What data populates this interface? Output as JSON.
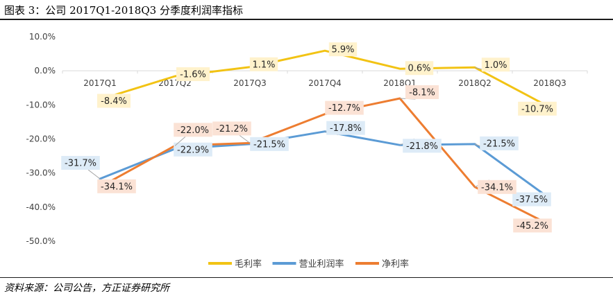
{
  "figure": {
    "title": "图表 3：公司 2017Q1-2018Q3 分季度利润率指标",
    "source": "资料来源：公司公告，方正证券研究所"
  },
  "chart_data": {
    "type": "line",
    "categories": [
      "2017Q1",
      "2017Q2",
      "2017Q3",
      "2017Q4",
      "2018Q1",
      "2018Q2",
      "2018Q3"
    ],
    "ylim": [
      -50,
      10
    ],
    "yticks": [
      10,
      0,
      -10,
      -20,
      -30,
      -40,
      -50
    ],
    "ytick_labels": [
      "10.0%",
      "0.0%",
      "-10.0%",
      "-20.0%",
      "-30.0%",
      "-40.0%",
      "-50.0%"
    ],
    "grid": false,
    "legend_position": "bottom",
    "series": [
      {
        "name": "毛利率",
        "color": "#F2C314",
        "label_bg": "#FFF2CC",
        "values": [
          -8.4,
          -1.6,
          1.1,
          5.9,
          0.6,
          1.0,
          -10.7
        ],
        "data_labels": [
          "-8.4%",
          "-1.6%",
          "1.1%",
          "5.9%",
          "0.6%",
          "1.0%",
          "-10.7%"
        ]
      },
      {
        "name": "营业利润率",
        "color": "#5B9BD5",
        "label_bg": "#DDEBF7",
        "values": [
          -31.7,
          -22.9,
          -21.5,
          -17.8,
          -21.8,
          -21.5,
          -37.5
        ],
        "data_labels": [
          "-31.7%",
          "-22.9%",
          "-21.5%",
          "-17.8%",
          "-21.8%",
          "-21.5%",
          "-37.5%"
        ]
      },
      {
        "name": "净利率",
        "color": "#ED7D31",
        "label_bg": "#FBE2D5",
        "values": [
          -34.1,
          -22.0,
          -21.2,
          -12.7,
          -8.1,
          -34.1,
          -45.2
        ],
        "data_labels": [
          "-34.1%",
          "-22.0%",
          "-21.2%",
          "-12.7%",
          "-8.1%",
          "-34.1%",
          "-45.2%"
        ]
      }
    ]
  }
}
